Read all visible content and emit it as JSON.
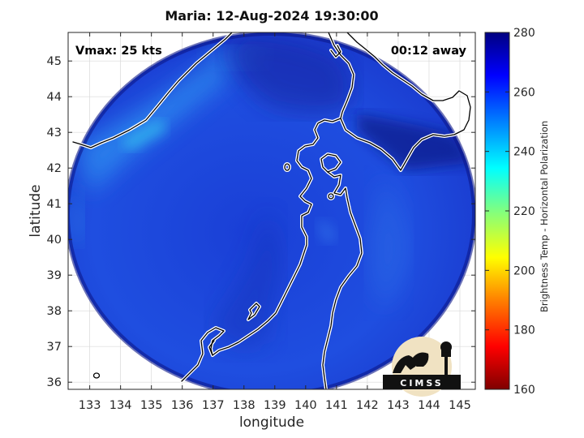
{
  "title": "Maria: 12-Aug-2024 19:30:00",
  "xlabel": "longitude",
  "ylabel": "latitude",
  "annotations": {
    "vmax": "Vmax: 25 kts",
    "time_away": "00:12 away"
  },
  "colorbar": {
    "label": "Brightness Temp - Horizontal Polarization",
    "min": 160,
    "max": 280,
    "ticks": [
      "280",
      "260",
      "240",
      "220",
      "200",
      "180",
      "160"
    ],
    "colors": [
      "#7f0000",
      "#ff0000",
      "#ff8000",
      "#ffff00",
      "#80ff80",
      "#00ffff",
      "#0080ff",
      "#0000ff",
      "#000080"
    ]
  },
  "logo": {
    "text": "CIMSS"
  },
  "chart_data": {
    "type": "heatmap",
    "title": "Maria: 12-Aug-2024 19:30:00",
    "xlabel": "longitude",
    "ylabel": "latitude",
    "xlim": [
      132.3,
      145.5
    ],
    "ylim": [
      35.8,
      45.8
    ],
    "x_ticks": [
      "133",
      "134",
      "135",
      "136",
      "137",
      "138",
      "139",
      "140",
      "141",
      "142",
      "143",
      "144",
      "145"
    ],
    "y_ticks": [
      "36",
      "37",
      "38",
      "39",
      "40",
      "41",
      "42",
      "43",
      "44",
      "45"
    ],
    "grid": true,
    "value_range": [
      160,
      280
    ],
    "colorbar_label": "Brightness Temp - Horizontal Polarization"
  }
}
